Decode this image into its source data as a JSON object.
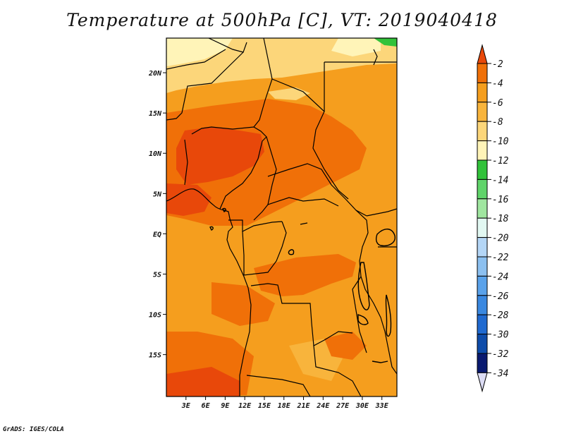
{
  "title": "Temperature at 500hPa [C], VT: 2019040418",
  "credit": "GrADS: IGES/COLA",
  "map": {
    "lat_ticks": [
      {
        "value": 20,
        "label": "20N"
      },
      {
        "value": 15,
        "label": "15N"
      },
      {
        "value": 10,
        "label": "10N"
      },
      {
        "value": 5,
        "label": "5N"
      },
      {
        "value": 0,
        "label": "EQ"
      },
      {
        "value": -5,
        "label": "5S"
      },
      {
        "value": -10,
        "label": "10S"
      },
      {
        "value": -15,
        "label": "15S"
      }
    ],
    "lon_ticks": [
      {
        "value": 3,
        "label": "3E"
      },
      {
        "value": 6,
        "label": "6E"
      },
      {
        "value": 9,
        "label": "9E"
      },
      {
        "value": 12,
        "label": "12E"
      },
      {
        "value": 15,
        "label": "15E"
      },
      {
        "value": 18,
        "label": "18E"
      },
      {
        "value": 21,
        "label": "21E"
      },
      {
        "value": 24,
        "label": "24E"
      },
      {
        "value": 27,
        "label": "27E"
      },
      {
        "value": 30,
        "label": "30E"
      },
      {
        "value": 33,
        "label": "33E"
      }
    ]
  },
  "colorbar": {
    "levels": [
      "-2",
      "-4",
      "-6",
      "-8",
      "-10",
      "-12",
      "-14",
      "-16",
      "-18",
      "-20",
      "-22",
      "-24",
      "-26",
      "-28",
      "-30",
      "-32",
      "-34"
    ],
    "colors": [
      "#e8480a",
      "#f07008",
      "#f59e1e",
      "#f8b43c",
      "#fcd67a",
      "#fff4b8",
      "#32c23a",
      "#60d46a",
      "#a0e6a0",
      "#e2f8f2",
      "#b4d6f6",
      "#8cc0f0",
      "#5aa2ea",
      "#3a88e0",
      "#206ad0",
      "#0e4caa",
      "#0a1a70",
      "#dcdcf4"
    ]
  },
  "colors": {
    "background": "#ffffff",
    "dominant_fill": "#f59e1e",
    "warm_fill": "#f07008",
    "warmest_fill": "#e8480a",
    "cool_fill": "#fcd67a"
  }
}
